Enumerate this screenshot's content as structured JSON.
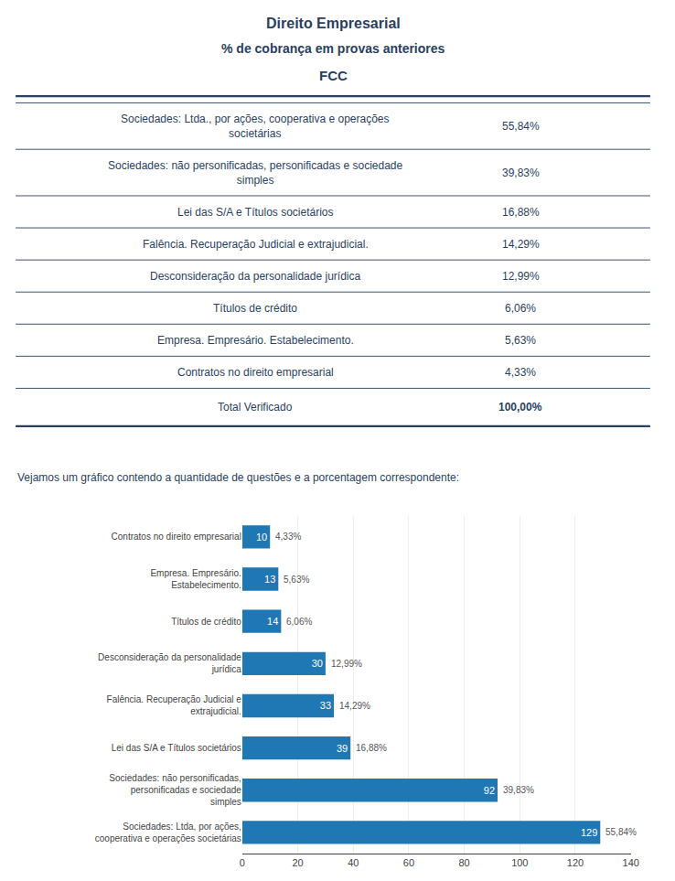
{
  "chart_data": [
    {
      "type": "table",
      "title": "Direito Empresarial",
      "subtitle": "% de cobrança em provas anteriores",
      "annotations": [
        "FCC"
      ],
      "categories": [
        "Sociedades: Ltda., por ações, cooperativa e operações\nsocietárias",
        "Sociedades: não personificadas, personificadas e sociedade\nsimples",
        "Lei das S/A e Títulos societários",
        "Falência. Recuperação Judicial e extrajudicial.",
        "Desconsideração da personalidade jurídica",
        "Títulos de crédito",
        "Empresa. Empresário. Estabelecimento.",
        "Contratos no direito empresarial",
        "Total Verificado"
      ],
      "values": [
        55.84,
        39.83,
        16.88,
        14.29,
        12.99,
        6.06,
        5.63,
        4.33,
        100.0
      ],
      "value_labels": [
        "55,84%",
        "39,83%",
        "16,88%",
        "14,29%",
        "12,99%",
        "6,06%",
        "5,63%",
        "4,33%",
        "100,00%"
      ]
    },
    {
      "type": "bar",
      "orientation": "horizontal",
      "subtitle": "Vejamos um gráfico contendo a quantidade de questões e a porcentagem correspondente:",
      "categories": [
        "Contratos no direito empresarial",
        "Empresa. Empresário. Estabelecimento.",
        "Títulos de crédito",
        "Desconsideração da personalidade jurídica",
        "Falência. Recuperação Judicial e extrajudicial.",
        "Lei das S/A e Títulos societários",
        "Sociedades: não personificadas, personificadas e sociedade\nsimples",
        "Sociedades: Ltda, por ações, cooperativa e operações societárias"
      ],
      "values": [
        10,
        13,
        14,
        30,
        33,
        39,
        92,
        129
      ],
      "percent": [
        4.33,
        5.63,
        6.06,
        12.99,
        14.29,
        16.88,
        39.83,
        55.84
      ],
      "percent_labels": [
        "4,33%",
        "5,63%",
        "6,06%",
        "12,99%",
        "14,29%",
        "16,88%",
        "39,83%",
        "55,84%"
      ],
      "data_labels": true,
      "xlim": [
        0,
        140
      ],
      "xticks": [
        0,
        20,
        40,
        60,
        80,
        100,
        120,
        140
      ],
      "grid": true
    }
  ]
}
